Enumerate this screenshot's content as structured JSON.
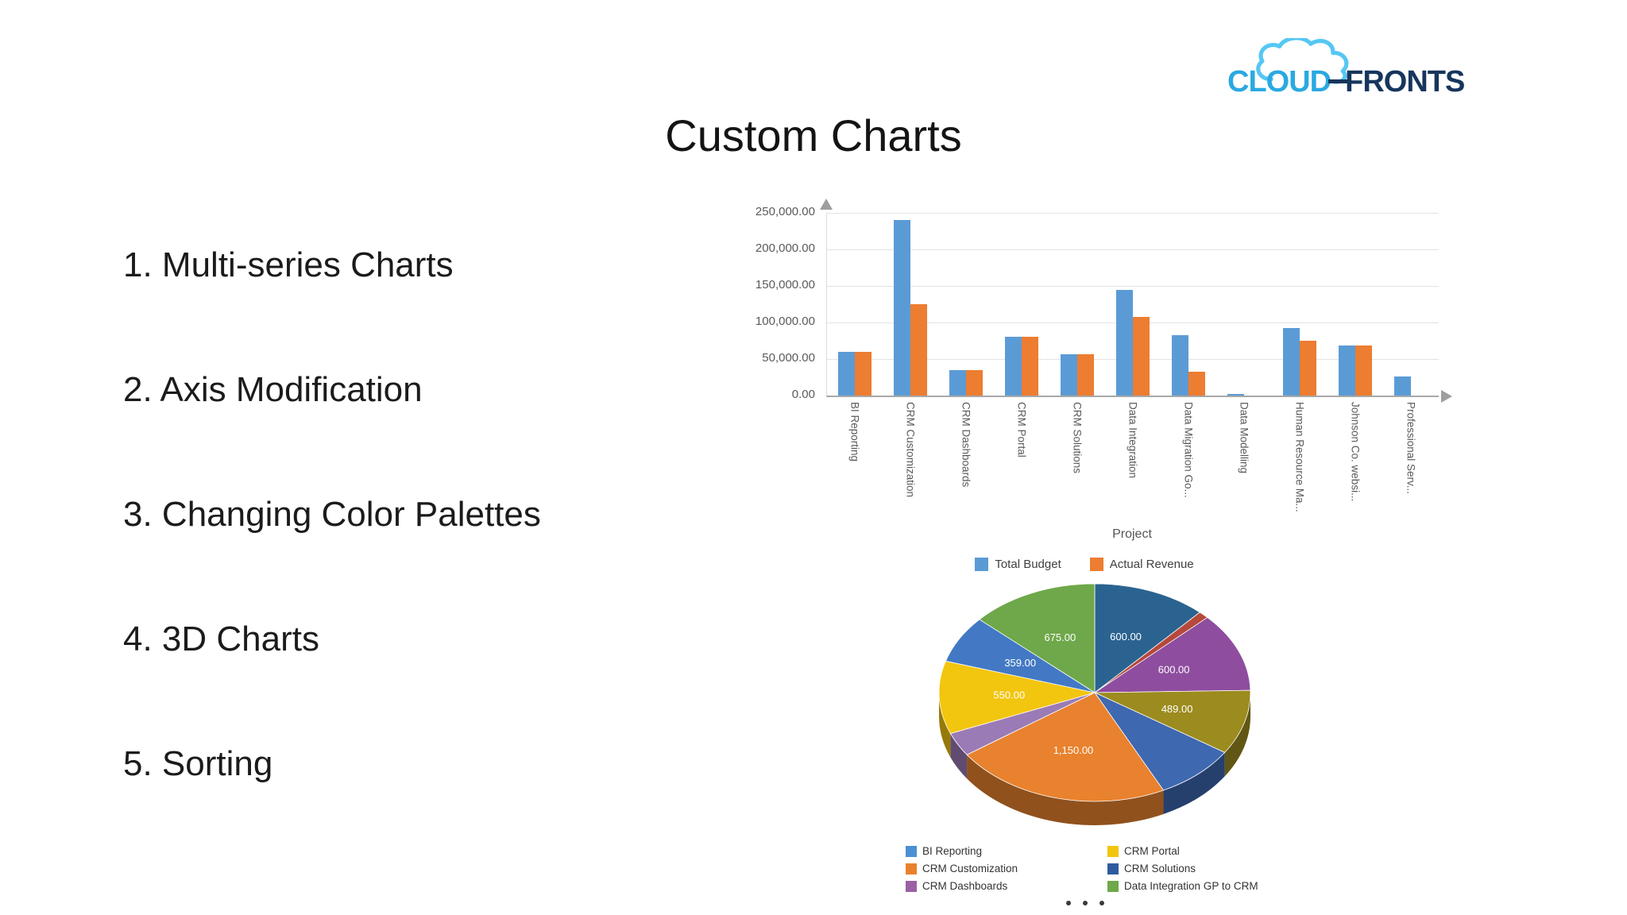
{
  "slide": {
    "title": "Custom Charts",
    "list_items": [
      "1. Multi-series Charts",
      "2. Axis Modification",
      "3. Changing Color Palettes",
      "4. 3D Charts",
      "5. Sorting"
    ]
  },
  "logo": {
    "word1": "CLOUD",
    "word2": "FRONTS",
    "accent_color": "#2aa9e1",
    "dark_color": "#17365d",
    "cloud_outline_color": "#55c7f3"
  },
  "chart_data": [
    {
      "type": "bar",
      "title": "",
      "xlabel": "Project",
      "ylabel": "",
      "ylim": [
        0,
        250000
      ],
      "grid": true,
      "legend_position": "bottom",
      "y_ticks": [
        "250,000.00",
        "200,000.00",
        "150,000.00",
        "100,000.00",
        "50,000.00",
        "0.00"
      ],
      "categories": [
        "BI Reporting",
        "CRM Customization",
        "CRM Dashboards",
        "CRM Portal",
        "CRM Solutions",
        "Data Integration",
        "Data Migration Go...",
        "Data Modelling",
        "Human Resource Ma...",
        "Johnson Co. websi...",
        "Professional Serv..."
      ],
      "series": [
        {
          "name": "Total Budget",
          "color": "#5B9BD5",
          "values": [
            60000,
            240000,
            35000,
            80000,
            57000,
            145000,
            83000,
            2000,
            92000,
            68000,
            26000
          ]
        },
        {
          "name": "Actual Revenue",
          "color": "#ED7D31",
          "values": [
            60000,
            125000,
            35000,
            80000,
            57000,
            108000,
            33000,
            0,
            75000,
            68000,
            0
          ]
        }
      ]
    },
    {
      "type": "pie",
      "style": "3d",
      "slices": [
        {
          "value": 600,
          "label": "600.00",
          "color": "#2B6390"
        },
        {
          "value": 55,
          "label": "",
          "color": "#B5493B"
        },
        {
          "value": 600,
          "label": "600.00",
          "color": "#8E4D9E"
        },
        {
          "value": 489,
          "label": "489.00",
          "color": "#9C8B1E"
        },
        {
          "value": 430,
          "label": "",
          "color": "#3E68B0"
        },
        {
          "value": 1150,
          "label": "1,150.00",
          "color": "#E8822E"
        },
        {
          "value": 180,
          "label": "",
          "color": "#9B7BB5"
        },
        {
          "value": 550,
          "label": "550.00",
          "color": "#F2C50F"
        },
        {
          "value": 359,
          "label": "359.00",
          "color": "#4379C4"
        },
        {
          "value": 675,
          "label": "675.00",
          "color": "#6FA84A"
        }
      ],
      "legend_position": "bottom",
      "legend": [
        {
          "name": "BI Reporting",
          "color": "#4A90D2"
        },
        {
          "name": "CRM Portal",
          "color": "#F2C50F"
        },
        {
          "name": "CRM Customization",
          "color": "#E8822E"
        },
        {
          "name": "CRM Solutions",
          "color": "#2F5B9E"
        },
        {
          "name": "CRM Dashboards",
          "color": "#9B5FA5"
        },
        {
          "name": "Data Integration GP to CRM",
          "color": "#6FA84A"
        }
      ]
    }
  ],
  "pagination": {
    "dot_count": 3
  }
}
